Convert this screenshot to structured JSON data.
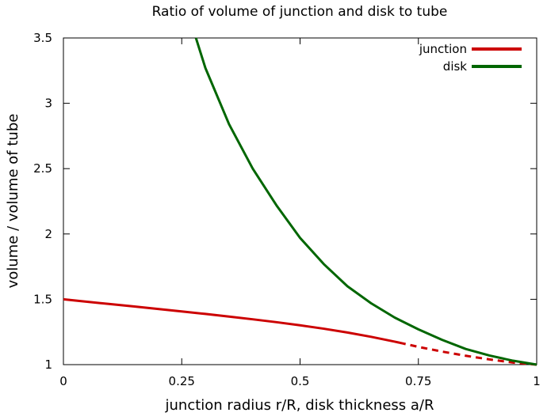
{
  "chart_data": {
    "type": "line",
    "title": "Ratio of volume of junction and disk to tube",
    "xlabel": "junction radius r/R, disk thickness a/R",
    "ylabel": "volume / volume of tube",
    "xlim": [
      0,
      1
    ],
    "ylim": [
      1,
      3.5
    ],
    "xticks": [
      "0",
      "0.25",
      "0.5",
      "0.75",
      "1"
    ],
    "yticks": [
      "1",
      "1.5",
      "2",
      "2.5",
      "3",
      "3.5"
    ],
    "legend_position": "top-right",
    "grid": false,
    "series": [
      {
        "name": "junction",
        "color": "#cc0000",
        "style_note": "solid until x≈0.71, dashed afterwards",
        "dash_from_x": 0.71,
        "x": [
          0,
          0.05,
          0.1,
          0.15,
          0.2,
          0.25,
          0.3,
          0.35,
          0.4,
          0.45,
          0.5,
          0.55,
          0.6,
          0.65,
          0.7,
          0.71,
          0.75,
          0.8,
          0.85,
          0.9,
          0.95,
          1
        ],
        "y": [
          1.5,
          1.481,
          1.463,
          1.445,
          1.426,
          1.407,
          1.388,
          1.368,
          1.347,
          1.325,
          1.301,
          1.275,
          1.246,
          1.213,
          1.176,
          1.168,
          1.136,
          1.1,
          1.068,
          1.04,
          1.016,
          1.0
        ]
      },
      {
        "name": "disk",
        "color": "#006600",
        "x": [
          0.28,
          0.3,
          0.35,
          0.4,
          0.45,
          0.5,
          0.55,
          0.6,
          0.65,
          0.7,
          0.75,
          0.8,
          0.85,
          0.9,
          0.95,
          1
        ],
        "y": [
          3.5,
          3.27,
          2.84,
          2.5,
          2.22,
          1.97,
          1.77,
          1.6,
          1.47,
          1.36,
          1.27,
          1.19,
          1.12,
          1.07,
          1.03,
          1.0
        ]
      }
    ]
  }
}
